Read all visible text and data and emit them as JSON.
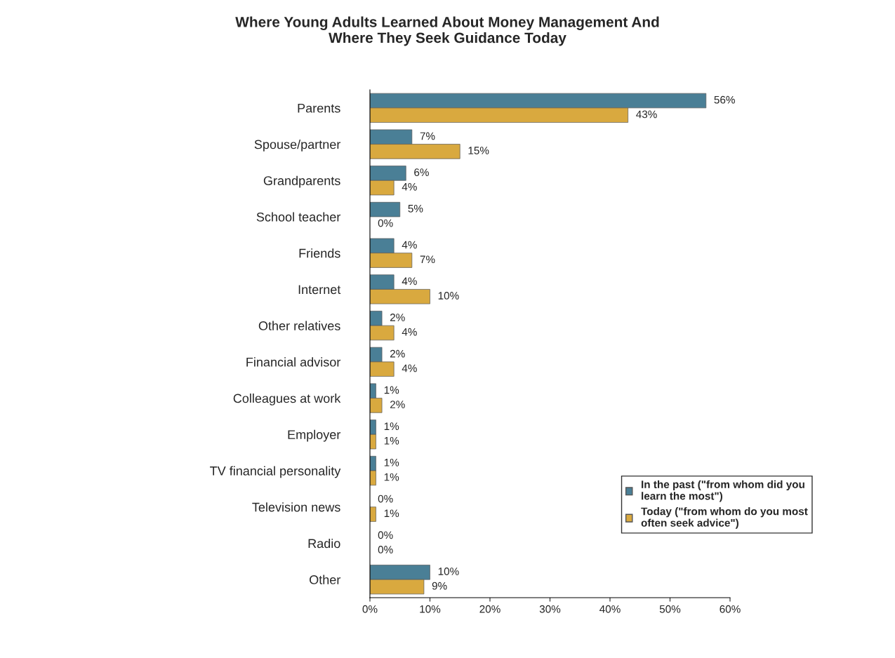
{
  "chart_data": {
    "type": "bar",
    "orientation": "horizontal",
    "title": "Where Young Adults Learned About Money Management And\nWhere They Seek Guidance Today",
    "categories": [
      "Parents",
      "Spouse/partner",
      "Grandparents",
      "School teacher",
      "Friends",
      "Internet",
      "Other relatives",
      "Financial advisor",
      "Colleagues at work",
      "Employer",
      "TV financial personality",
      "Television news",
      "Radio",
      "Other"
    ],
    "series": [
      {
        "name": "In the past (\"from whom did you learn the most\")",
        "color": "#4a7f96",
        "values": [
          56,
          7,
          6,
          5,
          4,
          4,
          2,
          2,
          1,
          1,
          1,
          0,
          0,
          10
        ],
        "value_labels": [
          "56%",
          "7%",
          "6%",
          "5%",
          "4%",
          "4%",
          "2%",
          "2%",
          "1%",
          "1%",
          "1%",
          "0%",
          "0%",
          "10%"
        ]
      },
      {
        "name": "Today (\"from whom do you most often seek advice\")",
        "color": "#d9a93f",
        "values": [
          43,
          15,
          4,
          0,
          7,
          10,
          4,
          4,
          2,
          1,
          1,
          1,
          0,
          9
        ],
        "value_labels": [
          "43%",
          "15%",
          "4%",
          "0%",
          "7%",
          "10%",
          "4%",
          "4%",
          "2%",
          "1%",
          "1%",
          "1%",
          "0%",
          "9%"
        ]
      }
    ],
    "xlim": [
      0,
      60
    ],
    "xticks": [
      {
        "value": 0,
        "label": "0%"
      },
      {
        "value": 10,
        "label": "10%"
      },
      {
        "value": 20,
        "label": "20%"
      },
      {
        "value": 30,
        "label": "30%"
      },
      {
        "value": 40,
        "label": "40%"
      },
      {
        "value": 50,
        "label": "50%"
      },
      {
        "value": 60,
        "label": "60%"
      }
    ],
    "legend": "bottom right"
  }
}
